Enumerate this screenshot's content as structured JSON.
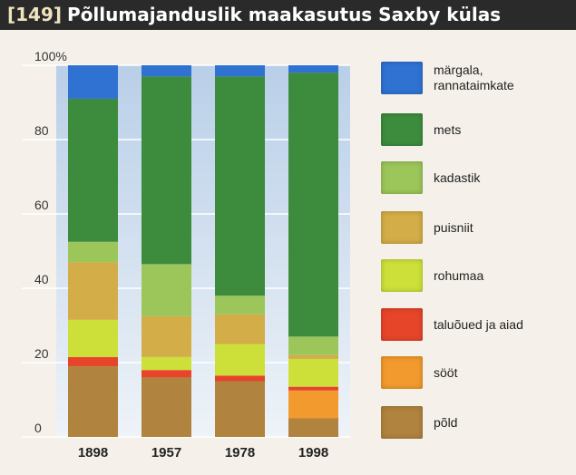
{
  "title": {
    "number": "[149]",
    "text": "Põllumajanduslik maakasutus Saxby külas"
  },
  "chart_data": {
    "type": "bar",
    "stacked": true,
    "categories": [
      "1898",
      "1957",
      "1978",
      "1998"
    ],
    "ylim": [
      0,
      100
    ],
    "y_ticks": [
      "0",
      "20",
      "40",
      "60",
      "80",
      "100%"
    ],
    "grid": true,
    "legend_position": "right",
    "series": [
      {
        "name": "põld",
        "color": "#b0833e",
        "values": [
          19,
          16,
          15,
          5
        ]
      },
      {
        "name": "sööt",
        "color": "#f29a2e",
        "values": [
          0,
          0,
          0,
          7.5
        ]
      },
      {
        "name": "taluõued ja aiad",
        "color": "#e6452a",
        "values": [
          2.5,
          2,
          1.5,
          1
        ]
      },
      {
        "name": "rohumaa",
        "color": "#cde03a",
        "values": [
          10,
          3.5,
          8.5,
          7.5
        ]
      },
      {
        "name": "puisniit",
        "color": "#d3ad47",
        "values": [
          15.5,
          11,
          8,
          1
        ]
      },
      {
        "name": "kadastik",
        "color": "#9cc55a",
        "values": [
          5.5,
          14,
          5,
          5
        ]
      },
      {
        "name": "mets",
        "color": "#3d8c3e",
        "values": [
          38.5,
          50.5,
          59,
          71
        ]
      },
      {
        "name": "märgala, rannataimkate",
        "color": "#2f72d2",
        "values": [
          9,
          3,
          3,
          2
        ]
      }
    ]
  },
  "legend": [
    {
      "label": "märgala,",
      "label2": "rannataimkate",
      "color": "#2f72d2"
    },
    {
      "label": "mets",
      "label2": "",
      "color": "#3d8c3e"
    },
    {
      "label": "kadastik",
      "label2": "",
      "color": "#9cc55a"
    },
    {
      "label": "puisniit",
      "label2": "",
      "color": "#d3ad47"
    },
    {
      "label": "rohumaa",
      "label2": "",
      "color": "#cde03a"
    },
    {
      "label": "taluõued ja aiad",
      "label2": "",
      "color": "#e6452a"
    },
    {
      "label": "sööt",
      "label2": "",
      "color": "#f29a2e"
    },
    {
      "label": "põld",
      "label2": "",
      "color": "#b0833e"
    }
  ]
}
